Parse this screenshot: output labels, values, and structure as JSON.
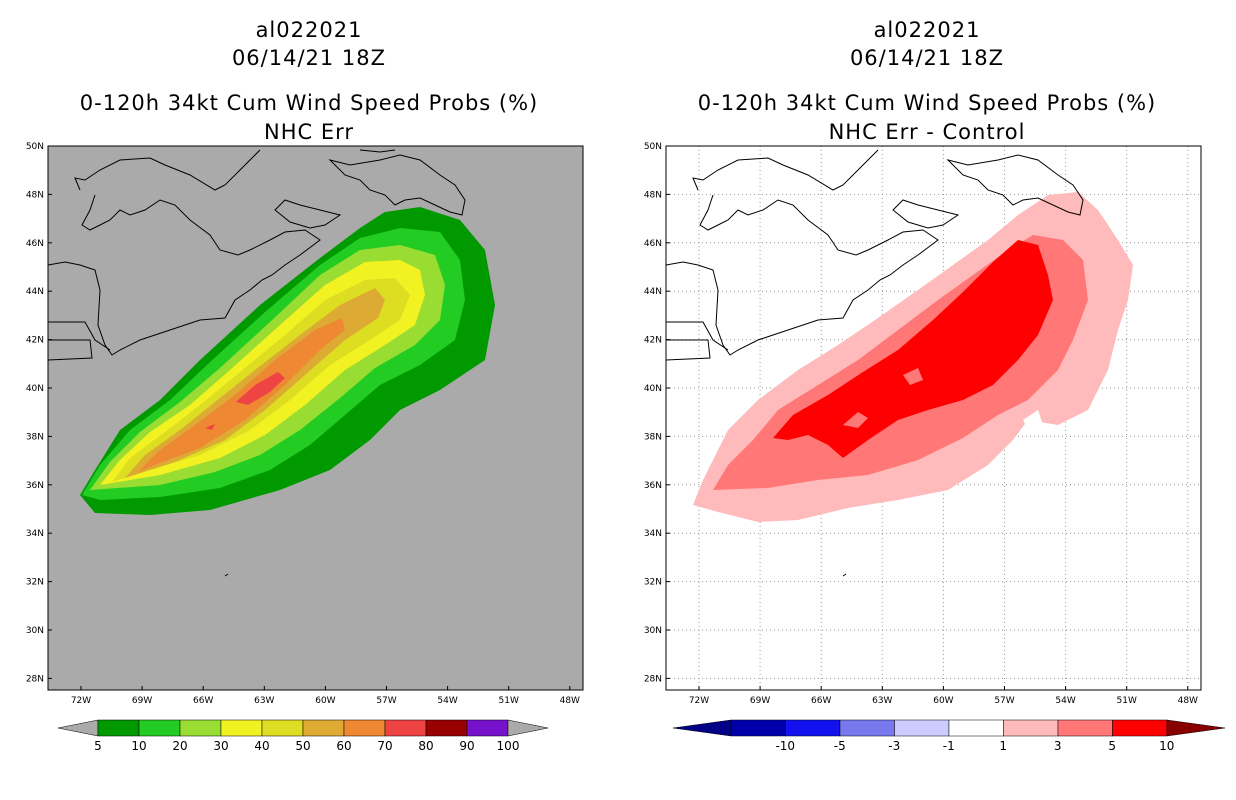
{
  "left_panel": {
    "storm_id": "al022021",
    "datetime": "06/14/21 18Z",
    "product": "0-120h 34kt Cum Wind Speed Probs (%)",
    "subtitle": "NHC Err",
    "colorbar": {
      "labels": [
        "5",
        "10",
        "20",
        "30",
        "40",
        "50",
        "60",
        "70",
        "80",
        "90",
        "100"
      ],
      "colors": [
        "#009900",
        "#22cc22",
        "#99dd33",
        "#f2f222",
        "#dddd22",
        "#ddaa33",
        "#ee8833",
        "#ee4444",
        "#990000",
        "#7711cc"
      ],
      "arrow_color": "#aaaaaa"
    },
    "background_color": "#aaaaaa"
  },
  "right_panel": {
    "storm_id": "al022021",
    "datetime": "06/14/21 18Z",
    "product": "0-120h 34kt Cum Wind Speed Probs (%)",
    "subtitle": "NHC Err - Control",
    "colorbar": {
      "labels": [
        "-10",
        "-5",
        "-3",
        "-1",
        "1",
        "3",
        "5",
        "10"
      ],
      "colors": [
        "#0000aa",
        "#1111ee",
        "#7777ee",
        "#ccccff",
        "#ffffff",
        "#ffbbbb",
        "#ff7777",
        "#ff0000"
      ],
      "arrow_left": "#000088",
      "arrow_right": "#880000"
    },
    "background_color": "#ffffff"
  },
  "map": {
    "lat_labels": [
      "50N",
      "48N",
      "46N",
      "44N",
      "42N",
      "40N",
      "38N",
      "36N",
      "34N",
      "32N",
      "30N",
      "28N"
    ],
    "lon_labels": [
      "72W",
      "69W",
      "66W",
      "63W",
      "60W",
      "57W",
      "54W",
      "51W",
      "48W"
    ]
  }
}
